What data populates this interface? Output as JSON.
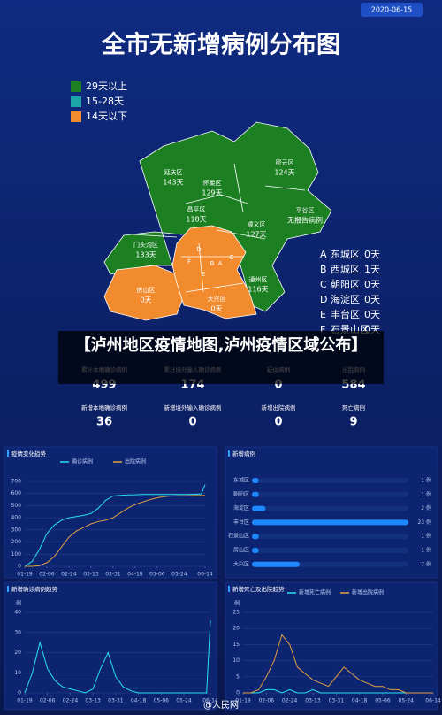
{
  "header": {
    "date": "2020-06-15",
    "title": "全市无新增病例分布图"
  },
  "map": {
    "legend": [
      {
        "label": "29天以上",
        "color": "#1c7f22"
      },
      {
        "label": "15-28天",
        "color": "#1aa6a6"
      },
      {
        "label": "14天以下",
        "color": "#f28a2e"
      }
    ],
    "districts": [
      {
        "name": "延庆区",
        "days": "143天"
      },
      {
        "name": "怀柔区",
        "days": "129天"
      },
      {
        "name": "密云区",
        "days": "124天"
      },
      {
        "name": "昌平区",
        "days": "118天"
      },
      {
        "name": "顺义区",
        "days": "127天"
      },
      {
        "name": "平谷区",
        "days": "无报告病例"
      },
      {
        "name": "门头沟区",
        "days": "133天"
      },
      {
        "name": "通州区",
        "days": "116天"
      },
      {
        "name": "房山区",
        "days": "0天"
      },
      {
        "name": "大兴区",
        "days": "0天"
      }
    ],
    "inner": [
      {
        "letter": "A",
        "name": "东城区",
        "days": "0天"
      },
      {
        "letter": "B",
        "name": "西城区",
        "days": "1天"
      },
      {
        "letter": "C",
        "name": "朝阳区",
        "days": "0天"
      },
      {
        "letter": "D",
        "name": "海淀区",
        "days": "0天"
      },
      {
        "letter": "E",
        "name": "丰台区",
        "days": "0天"
      },
      {
        "letter": "F",
        "name": "石景山区",
        "days": "0天"
      }
    ]
  },
  "caption": "【泸州地区疫情地图,泸州疫情区域公布】",
  "stats": [
    {
      "label": "累计本地确诊病例",
      "value": 499,
      "color": "#3ed3e6"
    },
    {
      "label": "累计境外输入确诊病例",
      "value": 174,
      "color": "#b070ea"
    },
    {
      "label": "疑似病例",
      "value": 0,
      "color": "#3a9cff"
    },
    {
      "label": "出院病例",
      "value": 584,
      "color": "#f0a640"
    },
    {
      "label": "新增本地确诊病例",
      "value": 36,
      "color": "#3ed3e6"
    },
    {
      "label": "新增境外输入确诊病例",
      "value": 0,
      "color": "#b070ea"
    },
    {
      "label": "新增出院病例",
      "value": 0,
      "color": "#3a9cff"
    },
    {
      "label": "死亡病例",
      "value": 9,
      "color": "#f0a640"
    }
  ],
  "chart_data": [
    {
      "type": "line",
      "title": "疫情变化趋势",
      "x": [
        "01-19",
        "01-25",
        "01-31",
        "02-06",
        "02-12",
        "02-18",
        "02-24",
        "03-01",
        "03-07",
        "03-13",
        "03-19",
        "03-25",
        "03-31",
        "04-06",
        "04-12",
        "04-18",
        "04-24",
        "04-30",
        "05-06",
        "05-12",
        "05-18",
        "05-24",
        "05-30",
        "06-05",
        "06-11",
        "06-14"
      ],
      "series": [
        {
          "name": "确诊病例",
          "color": "#27e0f0",
          "values": [
            0,
            40,
            140,
            270,
            340,
            380,
            400,
            410,
            420,
            435,
            480,
            545,
            580,
            585,
            589,
            590,
            593,
            593,
            593,
            593,
            593,
            593,
            593,
            594,
            597,
            673
          ]
        },
        {
          "name": "出院病例",
          "color": "#e0a040",
          "values": [
            0,
            0,
            5,
            30,
            80,
            160,
            240,
            290,
            320,
            350,
            370,
            380,
            400,
            440,
            480,
            510,
            530,
            550,
            565,
            575,
            580,
            581,
            582,
            584,
            584,
            584
          ]
        }
      ],
      "xlim": [
        "01-19",
        "06-14"
      ],
      "xticks": [
        "01-19",
        "02-06",
        "02-24",
        "03-13",
        "03-31",
        "04-18",
        "05-06",
        "05-24",
        "06-14"
      ],
      "ylim": [
        0,
        700
      ],
      "yticks": [
        0,
        100,
        200,
        300,
        400,
        500,
        600,
        700
      ],
      "grid": true
    },
    {
      "type": "hbar",
      "title": "新增病例",
      "categories": [
        "东城区",
        "朝阳区",
        "海淀区",
        "丰台区",
        "石景山区",
        "房山区",
        "大兴区"
      ],
      "values": [
        1,
        1,
        2,
        23,
        1,
        1,
        7
      ],
      "value_labels": [
        "1 例",
        "1 例",
        "2 例",
        "23 例",
        "1 例",
        "1 例",
        "7 例"
      ],
      "xlim": [
        0,
        23
      ],
      "color": "#1e88ff"
    },
    {
      "type": "line",
      "title": "新增确诊病例趋势",
      "y_label": "例",
      "x": [
        "01-19",
        "01-25",
        "01-31",
        "02-06",
        "02-12",
        "02-18",
        "02-24",
        "03-01",
        "03-07",
        "03-13",
        "03-19",
        "03-25",
        "03-31",
        "04-06",
        "04-12",
        "04-18",
        "04-24",
        "04-30",
        "05-06",
        "05-12",
        "05-18",
        "05-24",
        "05-30",
        "06-05",
        "06-11",
        "06-14"
      ],
      "series": [
        {
          "color": "#27e0f0",
          "values": [
            0,
            10,
            25,
            12,
            6,
            3,
            2,
            1,
            0,
            2,
            12,
            20,
            8,
            3,
            1,
            0,
            0,
            0,
            0,
            0,
            0,
            0,
            0,
            0,
            0,
            36
          ]
        }
      ],
      "xlim": [
        "01-19",
        "06-14"
      ],
      "xticks": [
        "01-19",
        "02-06",
        "02-24",
        "03-13",
        "03-31",
        "04-18",
        "05-06",
        "05-24",
        "06-14"
      ],
      "ylim": [
        0,
        40
      ],
      "yticks": [
        0,
        10,
        20,
        30,
        40
      ],
      "grid": true
    },
    {
      "type": "line",
      "title": "新增死亡及出院趋势",
      "y_label": "例",
      "x": [
        "01-19",
        "01-25",
        "01-31",
        "02-06",
        "02-12",
        "02-18",
        "02-24",
        "03-01",
        "03-07",
        "03-13",
        "03-19",
        "03-25",
        "03-31",
        "04-06",
        "04-12",
        "04-18",
        "04-24",
        "04-30",
        "05-06",
        "05-12",
        "05-18",
        "05-24",
        "05-30",
        "06-05",
        "06-11",
        "06-14"
      ],
      "series": [
        {
          "name": "新增死亡病例",
          "color": "#27e0f0",
          "values": [
            0,
            0,
            0,
            1,
            1,
            0,
            1,
            0,
            0,
            1,
            0,
            0,
            0,
            0,
            0,
            0,
            0,
            0,
            0,
            0,
            0,
            0,
            0,
            0,
            0,
            0
          ]
        },
        {
          "name": "新增出院病例",
          "color": "#e0a040",
          "values": [
            0,
            0,
            1,
            5,
            10,
            18,
            15,
            8,
            6,
            4,
            3,
            2,
            5,
            8,
            6,
            4,
            3,
            2,
            2,
            1,
            1,
            0,
            0,
            0,
            0,
            0
          ]
        }
      ],
      "xlim": [
        "01-19",
        "06-14"
      ],
      "xticks": [
        "01-19",
        "02-06",
        "02-24",
        "03-13",
        "03-31",
        "04-18",
        "05-06",
        "05-24",
        "06-14"
      ],
      "ylim": [
        0,
        25
      ],
      "yticks": [
        0,
        5,
        10,
        15,
        20,
        25
      ],
      "grid": true
    }
  ],
  "watermark": "@人民网"
}
